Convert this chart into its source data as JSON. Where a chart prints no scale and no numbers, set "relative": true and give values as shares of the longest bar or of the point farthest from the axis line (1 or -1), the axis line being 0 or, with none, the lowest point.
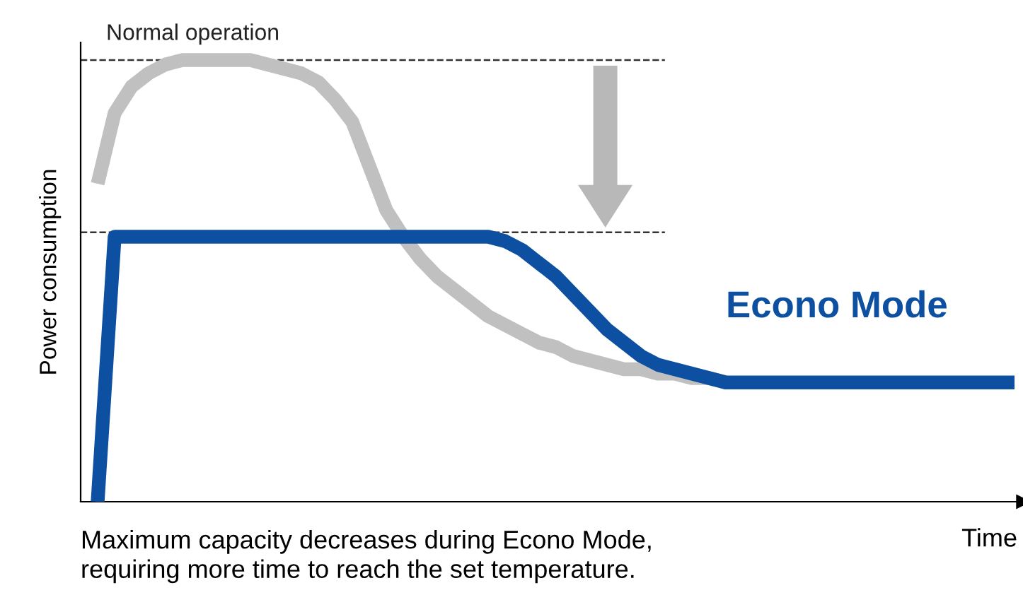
{
  "chart_data": {
    "type": "line",
    "relative": true,
    "xlabel": "Time",
    "ylabel": "Power consumption",
    "categories": [
      null,
      null,
      null,
      null,
      null,
      null,
      null,
      null,
      null,
      null,
      null,
      null,
      null,
      null,
      null,
      null,
      null,
      null,
      null,
      null,
      null,
      null,
      null,
      null,
      null,
      null,
      null,
      null,
      null,
      null,
      null,
      null,
      null,
      null,
      null,
      null,
      null,
      null,
      null,
      null,
      null,
      null,
      null,
      null,
      null,
      null,
      null,
      null,
      null,
      null,
      null,
      null,
      null,
      null,
      null,
      null
    ],
    "series": [
      {
        "color": "#c0c0c0",
        "values": [
          null,
          0.72,
          0.88,
          0.94,
          0.97,
          0.99,
          1.0,
          1.0,
          1.0,
          1.0,
          1.0,
          0.99,
          0.98,
          0.97,
          0.95,
          0.91,
          0.86,
          0.76,
          0.66,
          0.6,
          0.55,
          0.51,
          0.48,
          0.45,
          0.42,
          0.4,
          0.38,
          0.36,
          0.35,
          0.33,
          0.32,
          0.31,
          0.3,
          0.3,
          0.29,
          0.29,
          0.28,
          0.28,
          0.27,
          null,
          null,
          null,
          null,
          null,
          null,
          null,
          null,
          null,
          null,
          null,
          null,
          null,
          null,
          null,
          null,
          null
        ]
      },
      {
        "name": "Econo Mode",
        "color": "#0d4fa0",
        "values": [
          null,
          0,
          0.6,
          0.6,
          0.6,
          0.6,
          0.6,
          0.6,
          0.6,
          0.6,
          0.6,
          0.6,
          0.6,
          0.6,
          0.6,
          0.6,
          0.6,
          0.6,
          0.6,
          0.6,
          0.6,
          0.6,
          0.6,
          0.6,
          0.6,
          0.59,
          0.57,
          0.54,
          0.51,
          0.47,
          0.43,
          0.39,
          0.36,
          0.33,
          0.31,
          0.3,
          0.29,
          0.28,
          0.27,
          0.27,
          0.27,
          0.27,
          0.27,
          0.27,
          0.27,
          0.27,
          0.27,
          0.27,
          0.27,
          0.27,
          0.27,
          0.27,
          0.27,
          0.27,
          0.27,
          0.27
        ]
      }
    ],
    "ref_lines": [
      {
        "axis": "y",
        "value": 1.0,
        "label": "Normal operation",
        "color": "#333333",
        "line_style": "dashed"
      },
      {
        "axis": "y",
        "value": 0.61,
        "color": "#333333",
        "line_style": "dashed"
      }
    ],
    "annotations": [
      "Maximum capacity decreases during Econo Mode,\nrequiring more time to reach the set temperature."
    ],
    "legend": false
  }
}
